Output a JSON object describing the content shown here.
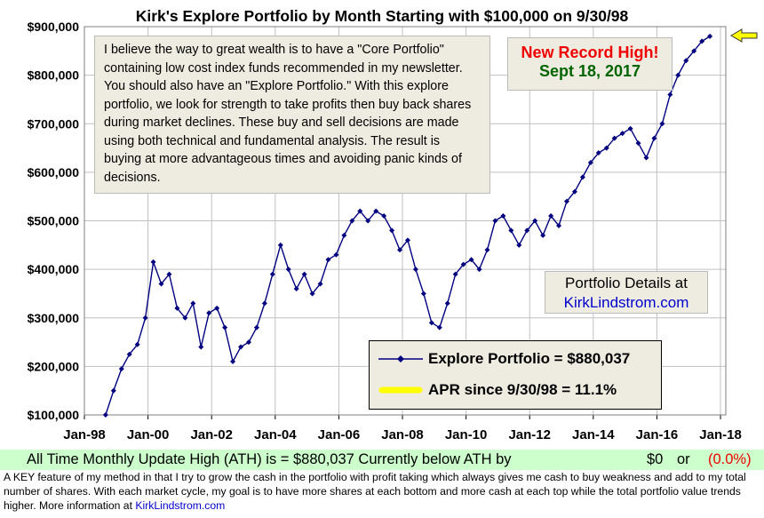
{
  "chart_data": {
    "type": "line",
    "title": "Kirk's Explore Portfolio by Month Starting with $100,000 on 9/30/98",
    "y_ticks": [
      "$100,000",
      "$200,000",
      "$300,000",
      "$400,000",
      "$500,000",
      "$600,000",
      "$700,000",
      "$800,000",
      "$900,000"
    ],
    "ylim": [
      100000,
      900000
    ],
    "x_ticks": [
      "Jan-98",
      "Jan-00",
      "Jan-02",
      "Jan-04",
      "Jan-06",
      "Jan-08",
      "Jan-10",
      "Jan-12",
      "Jan-14",
      "Jan-16",
      "Jan-18"
    ],
    "xlim": [
      "1998-01",
      "2018-03"
    ],
    "grid": true,
    "series": [
      {
        "name": "Explore Portfolio",
        "color": "#000080",
        "x": [
          "1998-09",
          "1998-12",
          "1999-03",
          "1999-06",
          "1999-09",
          "1999-12",
          "2000-03",
          "2000-06",
          "2000-09",
          "2000-12",
          "2001-03",
          "2001-06",
          "2001-09",
          "2001-12",
          "2002-03",
          "2002-06",
          "2002-09",
          "2002-12",
          "2003-03",
          "2003-06",
          "2003-09",
          "2003-12",
          "2004-03",
          "2004-06",
          "2004-09",
          "2004-12",
          "2005-03",
          "2005-06",
          "2005-09",
          "2005-12",
          "2006-03",
          "2006-06",
          "2006-09",
          "2006-12",
          "2007-03",
          "2007-06",
          "2007-09",
          "2007-12",
          "2008-03",
          "2008-06",
          "2008-09",
          "2008-12",
          "2009-03",
          "2009-06",
          "2009-09",
          "2009-12",
          "2010-03",
          "2010-06",
          "2010-09",
          "2010-12",
          "2011-03",
          "2011-06",
          "2011-09",
          "2011-12",
          "2012-03",
          "2012-06",
          "2012-09",
          "2012-12",
          "2013-03",
          "2013-06",
          "2013-09",
          "2013-12",
          "2014-03",
          "2014-06",
          "2014-09",
          "2014-12",
          "2015-03",
          "2015-06",
          "2015-09",
          "2015-12",
          "2016-03",
          "2016-06",
          "2016-09",
          "2016-12",
          "2017-03",
          "2017-06",
          "2017-09"
        ],
        "values": [
          100000,
          150000,
          195000,
          225000,
          245000,
          300000,
          415000,
          370000,
          390000,
          320000,
          300000,
          330000,
          240000,
          310000,
          320000,
          280000,
          210000,
          240000,
          250000,
          280000,
          330000,
          390000,
          450000,
          400000,
          360000,
          390000,
          350000,
          370000,
          420000,
          430000,
          470000,
          500000,
          520000,
          500000,
          520000,
          510000,
          480000,
          440000,
          460000,
          400000,
          350000,
          290000,
          280000,
          330000,
          390000,
          410000,
          420000,
          400000,
          440000,
          500000,
          510000,
          480000,
          450000,
          480000,
          500000,
          470000,
          510000,
          490000,
          540000,
          560000,
          590000,
          620000,
          640000,
          650000,
          670000,
          680000,
          690000,
          660000,
          630000,
          670000,
          700000,
          760000,
          800000,
          830000,
          850000,
          870000,
          880037
        ]
      }
    ],
    "apr_line_label": "APR since 9/30/98 = 11.1%",
    "apr_color": "#ffff00"
  },
  "annotations": {
    "note": "I believe the way to great wealth is to have a \"Core Portfolio\" containing low cost index funds recommended in my newsletter.  You  should also have an \"Explore Portfolio.\"  With this explore portfolio, we look for strength to take profits then buy back shares during market declines. These buy and sell decisions are made using both technical and fundamental analysis. The result is buying at more advantageous times and avoiding panic kinds of decisions.",
    "record_line1": "New Record High!",
    "record_line2": "Sept 18, 2017",
    "details_line1": "Portfolio Details at",
    "details_link": "KirkLindstrom.com",
    "legend_series": "Explore Portfolio  =  $880,037",
    "legend_apr": "APR since 9/30/98 =  11.1%"
  },
  "footer": {
    "ath_text": "All Time Monthly Update High (ATH) is =  $880,037  Currently below ATH by",
    "ath_diff": "$0",
    "ath_or": "or",
    "ath_pct": "(0.0%)",
    "note_text": "A KEY feature of my method in that I try to grow the cash in the portfolio with profit taking which always gives me cash to buy weakness and add to my total number of shares.  With each market cycle, my goal is to have more shares at each bottom and more cash at each top while the total portfolio value trends higher.          More information at",
    "note_link": "KirkLindstrom.com"
  },
  "colors": {
    "plot_bg": "#ffffff",
    "page_bg": "#ffffff",
    "series": "#000080",
    "accent_red": "#ee0000",
    "accent_green": "#006400",
    "ath_bar": "#ccffcc",
    "arrow": "#ffff00"
  }
}
